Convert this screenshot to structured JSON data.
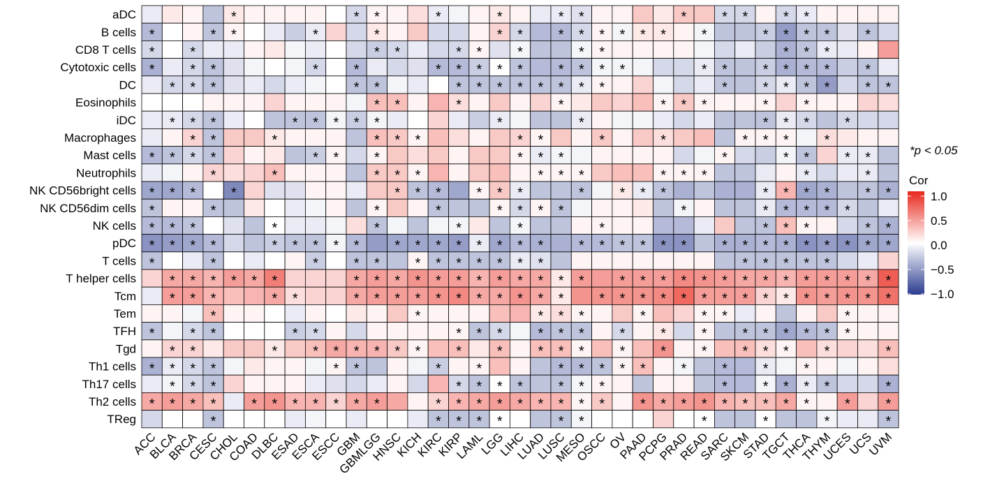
{
  "chart_data": {
    "type": "heatmap",
    "rows": [
      "aDC",
      "B cells",
      "CD8 T cells",
      "Cytotoxic cells",
      "DC",
      "Eosinophils",
      "iDC",
      "Macrophages",
      "Mast cells",
      "Neutrophils",
      "NK CD56bright cells",
      "NK CD56dim cells",
      "NK cells",
      "pDC",
      "T cells",
      "T helper cells",
      "Tcm",
      "Tem",
      "TFH",
      "Tgd",
      "Th1 cells",
      "Th17 cells",
      "Th2 cells",
      "TReg"
    ],
    "columns": [
      "ACC",
      "BLCA",
      "BRCA",
      "CESC",
      "CHOL",
      "COAD",
      "DLBC",
      "ESAD",
      "ESCA",
      "ESCC",
      "GBM",
      "GBMLGG",
      "HNSC",
      "KICH",
      "KIRC",
      "KIRP",
      "LAML",
      "LGG",
      "LIHC",
      "LUAD",
      "LUSC",
      "MESO",
      "OSCC",
      "OV",
      "PAAD",
      "PCPG",
      "PRAD",
      "READ",
      "SARC",
      "SKCM",
      "STAD",
      "TGCT",
      "THCA",
      "THYM",
      "UCES",
      "UCS",
      "UVM"
    ],
    "values": [
      [
        -0.1,
        0.1,
        0.05,
        -0.3,
        0.1,
        0.05,
        0.05,
        0.05,
        0.05,
        0,
        -0.2,
        0.05,
        0.05,
        0.15,
        -0.1,
        -0.05,
        0.05,
        0.1,
        0.05,
        -0.1,
        -0.1,
        -0.15,
        0.05,
        0.05,
        0.25,
        0.1,
        0.25,
        0.25,
        -0.2,
        -0.2,
        0.05,
        -0.2,
        -0.1,
        0.05,
        0.05,
        0.05,
        0.05
      ],
      [
        -0.35,
        0,
        0.05,
        -0.3,
        0.05,
        0,
        -0.1,
        -0.25,
        -0.1,
        0.2,
        -0.2,
        0.1,
        0.05,
        0.25,
        -0.2,
        -0.2,
        0.05,
        0.2,
        -0.2,
        -0.35,
        -0.35,
        -0.2,
        0.05,
        -0.05,
        0.1,
        0.1,
        0.05,
        -0.05,
        -0.3,
        -0.3,
        -0.25,
        -0.5,
        -0.3,
        -0.3,
        -0.15,
        -0.3,
        -0.2
      ],
      [
        -0.2,
        0,
        -0.2,
        -0.1,
        -0.1,
        0.05,
        0.1,
        -0.05,
        -0.1,
        0,
        -0.2,
        -0.25,
        -0.2,
        -0.1,
        -0.2,
        -0.2,
        0.05,
        -0.15,
        -0.05,
        -0.3,
        -0.3,
        -0.05,
        0.05,
        0.05,
        0.05,
        0.05,
        0.05,
        -0.05,
        -0.2,
        -0.1,
        -0.25,
        -0.4,
        -0.3,
        -0.1,
        -0.1,
        0.05,
        0.45
      ],
      [
        -0.4,
        -0.1,
        -0.2,
        -0.3,
        -0.15,
        -0.05,
        0,
        -0.05,
        -0.2,
        0,
        -0.35,
        -0.1,
        -0.2,
        -0.15,
        -0.35,
        -0.35,
        -0.25,
        0,
        -0.3,
        -0.35,
        -0.35,
        -0.3,
        -0.05,
        -0.05,
        -0.05,
        -0.2,
        -0.2,
        -0.1,
        -0.3,
        -0.3,
        -0.25,
        -0.4,
        -0.35,
        -0.35,
        -0.25,
        -0.3,
        -0.1
      ],
      [
        -0.1,
        -0.2,
        -0.2,
        -0.3,
        -0.15,
        -0.1,
        -0.2,
        -0.1,
        -0.05,
        0,
        -0.3,
        -0.3,
        -0.05,
        -0.1,
        0,
        -0.3,
        -0.3,
        -0.3,
        -0.3,
        -0.3,
        -0.3,
        -0.1,
        0.05,
        0.05,
        0.2,
        -0.05,
        -0.2,
        -0.1,
        -0.3,
        -0.3,
        -0.2,
        -0.1,
        -0.3,
        -0.5,
        -0.2,
        -0.3,
        -0.3
      ],
      [
        0,
        0,
        0,
        0.05,
        0.05,
        0.05,
        0.2,
        0.05,
        0.05,
        0.05,
        -0.05,
        0.3,
        0.3,
        0.05,
        0.35,
        0.15,
        0.05,
        0.25,
        0.05,
        0.2,
        0.05,
        0.1,
        0.25,
        0.2,
        0.3,
        0.05,
        0.25,
        0.05,
        0.05,
        0.05,
        0.05,
        0.2,
        0.05,
        0.05,
        0.05,
        0.2,
        0.15
      ],
      [
        -0.1,
        -0.1,
        -0.2,
        -0.3,
        -0.1,
        0,
        -0.3,
        -0.3,
        -0.3,
        -0.05,
        -0.25,
        -0.05,
        -0.1,
        0,
        0.2,
        -0.1,
        -0.25,
        -0.1,
        -0.05,
        -0.3,
        -0.3,
        -0.1,
        0.05,
        -0.05,
        -0.05,
        -0.1,
        -0.2,
        -0.1,
        -0.3,
        -0.3,
        -0.3,
        -0.1,
        -0.2,
        -0.3,
        -0.2,
        -0.2,
        -0.2
      ],
      [
        -0.1,
        0.05,
        0.2,
        -0.3,
        0.25,
        0.25,
        0.1,
        0.05,
        0.05,
        0.05,
        -0.3,
        0.3,
        0.25,
        0.05,
        0.3,
        0.15,
        0.05,
        0.25,
        0.2,
        0.05,
        0.25,
        0.05,
        0.25,
        0.05,
        0.25,
        0.15,
        0.25,
        0.3,
        -0.3,
        0.05,
        0.05,
        0.05,
        -0.05,
        0.15,
        0.1,
        0.05,
        0.05
      ],
      [
        -0.35,
        -0.3,
        -0.2,
        -0.3,
        0.2,
        0.05,
        0.1,
        -0.3,
        -0.25,
        0.05,
        -0.2,
        0.05,
        0.25,
        0.15,
        0.25,
        0.05,
        0.25,
        0.25,
        0.05,
        -0.1,
        -0.05,
        -0.05,
        0.05,
        0.05,
        0.05,
        0.05,
        -0.2,
        -0.05,
        0.05,
        -0.2,
        -0.25,
        -0.05,
        -0.3,
        0.2,
        -0.1,
        -0.1,
        -0.3
      ],
      [
        -0.1,
        -0.05,
        0.05,
        0.2,
        0.15,
        0.2,
        0.3,
        0.05,
        0.05,
        0.05,
        -0.3,
        0.25,
        0.25,
        0.05,
        0.35,
        0.05,
        0.25,
        0.3,
        0.05,
        0.05,
        0.05,
        0.05,
        0.25,
        0.3,
        0.3,
        0.05,
        0.05,
        0.05,
        -0.3,
        -0.3,
        -0.1,
        0.05,
        -0.1,
        -0.2,
        -0.1,
        -0.1,
        -0.3
      ],
      [
        -0.45,
        -0.45,
        -0.35,
        0,
        -0.6,
        0.2,
        -0.15,
        -0.15,
        0.05,
        0.05,
        -0.1,
        0.25,
        0.25,
        -0.3,
        -0.35,
        -0.45,
        0.05,
        0.25,
        -0.1,
        -0.3,
        -0.3,
        -0.3,
        -0.05,
        0.1,
        -0.1,
        -0.3,
        -0.4,
        -0.3,
        -0.4,
        -0.4,
        -0.1,
        0.35,
        -0.45,
        -0.4,
        -0.3,
        -0.3,
        -0.4
      ],
      [
        -0.3,
        0.05,
        0.05,
        -0.3,
        -0.3,
        0.1,
        0,
        -0.1,
        -0.05,
        0.05,
        -0.3,
        0.05,
        0.25,
        0.05,
        -0.3,
        -0.3,
        -0.3,
        0.05,
        -0.2,
        0.05,
        -0.3,
        -0.05,
        0.05,
        0.05,
        0.1,
        -0.3,
        -0.05,
        0.05,
        -0.3,
        -0.3,
        -0.1,
        -0.35,
        -0.35,
        -0.35,
        -0.2,
        -0.3,
        -0.1
      ],
      [
        -0.35,
        -0.35,
        -0.3,
        0,
        -0.15,
        -0.3,
        0,
        -0.1,
        -0.1,
        -0.05,
        0.15,
        -0.3,
        -0.05,
        -0.3,
        -0.05,
        -0.05,
        0.1,
        -0.3,
        -0.05,
        -0.3,
        -0.3,
        0.05,
        0.05,
        0.05,
        0.05,
        -0.35,
        -0.35,
        -0.1,
        0.25,
        -0.3,
        -0.3,
        0.3,
        0.05,
        0.05,
        -0.2,
        -0.3,
        -0.4
      ],
      [
        -0.55,
        -0.5,
        -0.45,
        -0.35,
        -0.2,
        -0.3,
        -0.25,
        -0.3,
        -0.3,
        -0.05,
        -0.35,
        -0.5,
        -0.45,
        -0.45,
        -0.45,
        -0.5,
        -0.1,
        -0.45,
        -0.35,
        -0.4,
        -0.4,
        -0.35,
        -0.35,
        -0.3,
        -0.3,
        -0.55,
        -0.55,
        -0.3,
        -0.4,
        -0.4,
        -0.35,
        -0.4,
        -0.55,
        -0.5,
        -0.55,
        -0.45,
        -0.45
      ],
      [
        -0.3,
        0,
        -0.1,
        -0.3,
        0,
        -0.1,
        0,
        0.05,
        -0.25,
        0,
        -0.3,
        -0.3,
        -0.3,
        0.05,
        -0.3,
        -0.3,
        -0.3,
        -0.3,
        -0.1,
        -0.15,
        -0.3,
        0.05,
        0.05,
        0.05,
        0.05,
        0.05,
        0.05,
        0.05,
        -0.3,
        -0.3,
        -0.3,
        -0.3,
        -0.3,
        -0.3,
        -0.2,
        -0.1,
        0.2
      ],
      [
        0.2,
        0.4,
        0.4,
        0.35,
        0.45,
        0.4,
        0.6,
        0.2,
        0.2,
        0.2,
        0.4,
        0.45,
        0.4,
        0.5,
        0.45,
        0.45,
        0.35,
        0.45,
        0.4,
        0.4,
        0.1,
        0.45,
        0.45,
        0.45,
        0.45,
        0.45,
        0.55,
        0.5,
        0.45,
        0.4,
        0.4,
        0.35,
        0.45,
        0.45,
        0.45,
        0.4,
        0.75
      ],
      [
        -0.1,
        0.45,
        0.45,
        0.35,
        0.3,
        0.35,
        0.4,
        0.15,
        0.2,
        0.2,
        0.4,
        0.45,
        0.45,
        0.45,
        0.5,
        0.55,
        0.4,
        0.4,
        0.5,
        0.4,
        0.1,
        0.5,
        0.5,
        0.5,
        0.5,
        0.55,
        0.7,
        0.45,
        0.45,
        0.45,
        0.2,
        0.1,
        0.5,
        0.45,
        0.5,
        0.5,
        0.65
      ],
      [
        0.05,
        0.05,
        -0.05,
        0.3,
        0.05,
        0.05,
        0,
        -0.1,
        0.05,
        0,
        0.1,
        0.05,
        0.25,
        0.05,
        0.05,
        0.05,
        0.05,
        0.3,
        0.35,
        0.1,
        0.15,
        0.05,
        0.05,
        0.25,
        0.05,
        0.3,
        0.2,
        0.05,
        0.05,
        -0.1,
        0.05,
        -0.3,
        0.05,
        0.25,
        0.05,
        0.05,
        0.05
      ],
      [
        -0.3,
        -0.05,
        -0.2,
        -0.3,
        0,
        0,
        0,
        -0.25,
        -0.2,
        0.05,
        -0.2,
        0.05,
        0.05,
        0.05,
        0.05,
        0.05,
        -0.3,
        -0.2,
        -0.05,
        -0.35,
        -0.3,
        -0.3,
        0.05,
        -0.2,
        0.05,
        0.1,
        -0.2,
        0.05,
        -0.3,
        -0.3,
        -0.3,
        -0.45,
        -0.35,
        -0.3,
        0.05,
        0.05,
        0.05
      ],
      [
        0.05,
        0.2,
        0.2,
        0.1,
        0.25,
        0.25,
        0.1,
        0.25,
        0.3,
        0.4,
        0.35,
        0.35,
        0.25,
        0.05,
        0.3,
        0.3,
        0.1,
        0.3,
        0.05,
        0.3,
        0.3,
        0.05,
        0.3,
        0.05,
        0.3,
        0.5,
        0.05,
        0.05,
        0.3,
        0.3,
        0.15,
        0.05,
        0.3,
        0.15,
        0.2,
        0.15,
        0.3
      ],
      [
        -0.4,
        -0.1,
        -0.2,
        -0.3,
        -0.05,
        0.1,
        0.05,
        0.05,
        -0.05,
        0.05,
        -0.3,
        -0.3,
        0.05,
        -0.05,
        -0.25,
        0.05,
        0.05,
        0.3,
        0.05,
        -0.3,
        -0.35,
        -0.35,
        -0.3,
        0.05,
        0.3,
        0.05,
        -0.05,
        -0.3,
        -0.35,
        -0.35,
        -0.1,
        -0.05,
        0.05,
        0.05,
        -0.05,
        0.05,
        0.15
      ],
      [
        -0.1,
        -0.05,
        -0.2,
        -0.3,
        0.2,
        0.05,
        0.05,
        0.05,
        -0.1,
        -0.15,
        -0.2,
        -0.1,
        0.05,
        -0.2,
        0.35,
        -0.2,
        -0.3,
        0,
        -0.3,
        -0.3,
        -0.3,
        -0.05,
        0.05,
        0.05,
        -0.3,
        0.05,
        0.05,
        -0.3,
        -0.35,
        -0.35,
        -0.05,
        -0.4,
        -0.1,
        -0.3,
        -0.2,
        -0.2,
        -0.4
      ],
      [
        0.4,
        0.45,
        0.4,
        0.3,
        -0.1,
        0.45,
        0.5,
        0.35,
        0.35,
        0.2,
        0.4,
        0.45,
        0.4,
        0.05,
        0.2,
        0.35,
        0.4,
        0.45,
        0.4,
        0.35,
        0.35,
        0.05,
        0.25,
        0.05,
        0.5,
        0.4,
        0.45,
        0.5,
        0.35,
        0.3,
        0.3,
        0.4,
        0.05,
        0.05,
        0.45,
        0.2,
        0.45
      ],
      [
        -0.2,
        0,
        0,
        -0.3,
        0,
        0,
        0,
        -0.1,
        -0.05,
        0,
        -0.1,
        0,
        0,
        -0.1,
        -0.3,
        -0.3,
        -0.3,
        0,
        0,
        -0.3,
        -0.3,
        -0.05,
        0,
        0,
        0,
        0.2,
        0,
        0,
        -0.3,
        -0.3,
        0,
        -0.3,
        -0.3,
        -0.05,
        -0.1,
        -0.1,
        -0.3
      ]
    ],
    "significant": [
      [
        "ACC",
        ""
      ],
      [],
      [],
      [],
      [],
      [],
      [],
      [],
      [],
      [],
      [],
      [],
      [],
      [],
      [],
      [],
      [],
      [],
      [],
      [],
      [],
      [],
      [],
      []
    ],
    "sig_marks": [
      "0000100000110010010011000010110110000",
      "1001100010010000011011111101001111010",
      "1010000000011001101001100000000111000",
      "1011000010100011111011110001101111010",
      "0111000000110001111111100000101111011",
      "0000000000011001000010000111001010000",
      "0111000111110000010001000000001110100",
      "0011001000011100001100100100011101000",
      "1111000011010000001110000000100110110",
      "0001001000011100000111000111000010010",
      "1110100000001110111001011100001111011",
      "1001000000010010011110000010001111100",
      "1110001000010001001000100000001110011",
      "1111001111101111111101111110111111111",
      "1001000010110111111100000000011111000",
      "0111111000111111111111011111111111111",
      "0111001100111111111110111111111111111",
      "0001000000000100000111001001100000100",
      "1011000110000001110111010101011111100",
      "0110001011111101010111010101011101001",
      "1111000001100010100011111010101010000",
      "0111000000000001111011100000101111001",
      "1111011111110011111111101111111110101",
      "0001000000000011110011000001001001001"
    ],
    "legend_title": "Cor",
    "legend_ticks": [
      "1.0",
      "0.5",
      "0.0",
      "−0.5",
      "−1.0"
    ],
    "scale": {
      "min": -1.0,
      "max": 1.0,
      "low_color": "#2b3b8f",
      "mid_color": "#ffffff",
      "high_color": "#e8281c"
    },
    "annotation": "*p < 0.05"
  }
}
